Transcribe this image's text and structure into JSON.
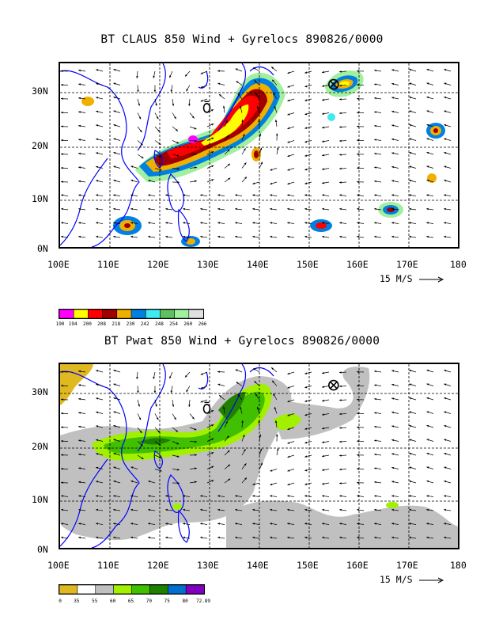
{
  "panels": [
    {
      "title": "BT CLAUS 850 Wind + Gyrelocs 890826/0000",
      "lat_labels": [
        "30N",
        "20N",
        "10N",
        "0N"
      ],
      "lon_labels": [
        "100E",
        "110E",
        "120E",
        "130E",
        "140E",
        "150E",
        "160E",
        "170E",
        "180"
      ],
      "scale_label": "15 M/S",
      "legend_values": [
        "190",
        "194",
        "200",
        "208",
        "218",
        "230",
        "242",
        "248",
        "254",
        "260",
        "266"
      ],
      "legend_colors": [
        "#ff00ff",
        "#ffff00",
        "#ff0000",
        "#a00000",
        "#f0b000",
        "#0080e0",
        "#40e8f0",
        "#60c060",
        "#a0f0a0",
        "#e0e0e0"
      ]
    },
    {
      "title": "BT Pwat 850 Wind + Gyrelocs 890826/0000",
      "lat_labels": [
        "30N",
        "20N",
        "10N",
        "0N"
      ],
      "lon_labels": [
        "100E",
        "110E",
        "120E",
        "130E",
        "140E",
        "150E",
        "160E",
        "170E",
        "180"
      ],
      "scale_label": "15 M/S",
      "legend_values": [
        "0",
        "35",
        "55",
        "60",
        "65",
        "70",
        "75",
        "80",
        "72.89"
      ],
      "legend_colors": [
        "#e0b820",
        "#ffffff",
        "#c0c0c0",
        "#a0f000",
        "#40c000",
        "#208000",
        "#0070d0",
        "#8000c0"
      ]
    }
  ],
  "gyrelocs": [
    {
      "symbol": "circle-x",
      "lon": 155,
      "lat": 31
    },
    {
      "symbol": "cyclone",
      "lon": 129.5,
      "lat": 26.5
    }
  ],
  "map_extent": {
    "lon": [
      100,
      180
    ],
    "lat": [
      0,
      35
    ]
  }
}
